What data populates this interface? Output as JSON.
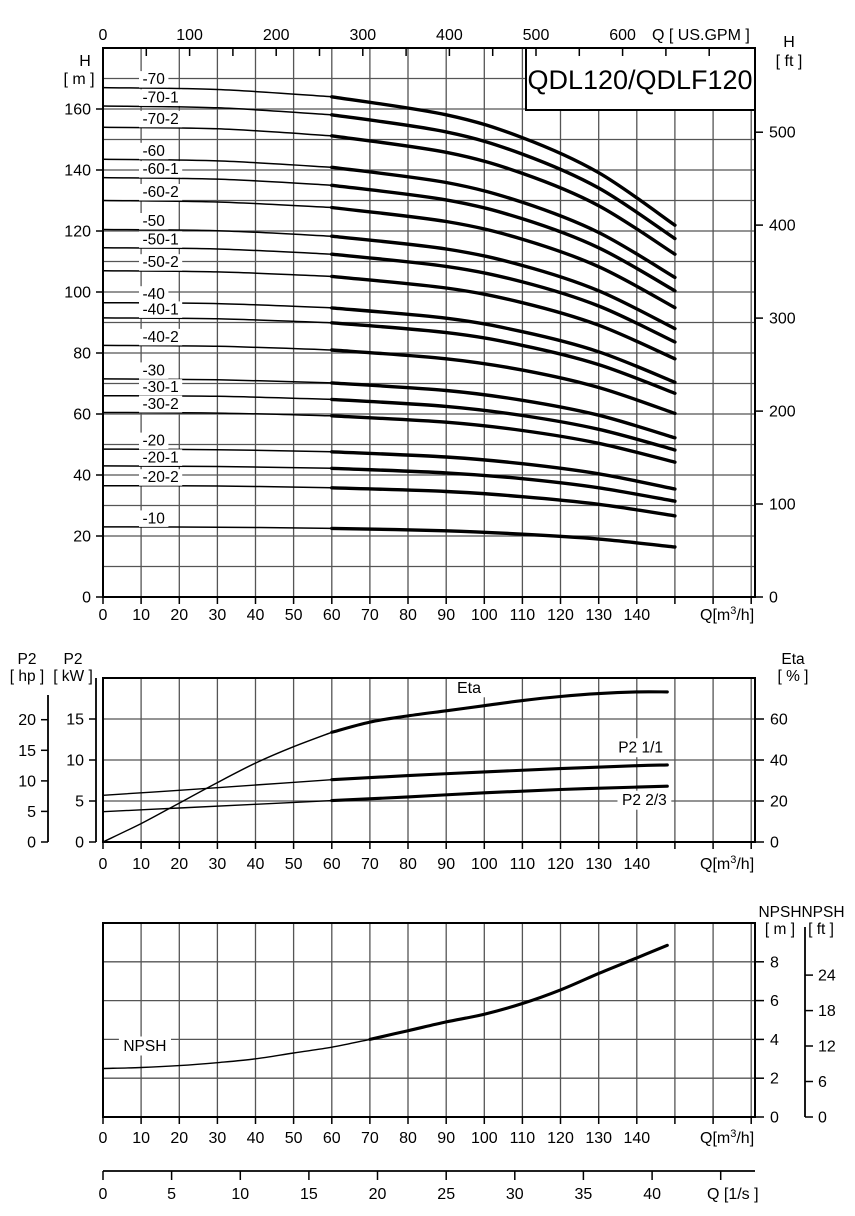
{
  "page": {
    "background": "#ffffff",
    "colors": {
      "ink": "#000000",
      "grid": "#555555",
      "box_fill": "#ffffff"
    }
  },
  "chart_data": [
    {
      "id": "head_capacity",
      "type": "line",
      "title": "QDL120/QDLF120",
      "axes": {
        "x_bottom": {
          "label": "Q[m³/h]",
          "range": [
            0,
            171
          ],
          "ticks": [
            0,
            10,
            20,
            30,
            40,
            50,
            60,
            70,
            80,
            90,
            100,
            110,
            120,
            130,
            140
          ],
          "grid_step": 10,
          "grid_max": 170
        },
        "x_top": {
          "label": "Q [ US.GPM ]",
          "ticks": [
            0,
            100,
            200,
            300,
            400,
            500,
            600
          ],
          "minor_tick_step": 50,
          "minor_tick_max": 700,
          "gpm_to_m3h": 0.22712
        },
        "y_left": {
          "name": "H",
          "unit": "[ m ]",
          "range": [
            0,
            180
          ],
          "ticks": [
            0,
            20,
            40,
            60,
            80,
            100,
            120,
            140,
            160
          ],
          "grid_step": 10
        },
        "y_right": {
          "name": "H",
          "unit": "[ ft ]",
          "ticks": [
            0,
            100,
            200,
            300,
            400,
            500
          ],
          "ft_to_m": 0.3048
        }
      },
      "series": [
        {
          "label": "-70",
          "bold_from": 60,
          "points": [
            [
              0,
              167
            ],
            [
              30,
              166.4
            ],
            [
              60,
              164
            ],
            [
              90,
              158.1
            ],
            [
              110,
              150.6
            ],
            [
              130,
              139.1
            ],
            [
              150,
              121.9
            ]
          ]
        },
        {
          "label": "-70-1",
          "bold_from": 60,
          "points": [
            [
              0,
              161
            ],
            [
              30,
              160.4
            ],
            [
              60,
              158.1
            ],
            [
              90,
              152.5
            ],
            [
              110,
              145.2
            ],
            [
              130,
              134.1
            ],
            [
              150,
              117.5
            ]
          ]
        },
        {
          "label": "-70-2",
          "bold_from": 60,
          "points": [
            [
              0,
              154
            ],
            [
              30,
              153.5
            ],
            [
              60,
              151.2
            ],
            [
              90,
              145.8
            ],
            [
              110,
              138.9
            ],
            [
              130,
              128.3
            ],
            [
              150,
              112.4
            ]
          ]
        },
        {
          "label": "-60",
          "bold_from": 60,
          "points": [
            [
              0,
              143.5
            ],
            [
              30,
              143
            ],
            [
              60,
              140.9
            ],
            [
              90,
              135.9
            ],
            [
              110,
              129.4
            ],
            [
              130,
              119.5
            ],
            [
              150,
              104.8
            ]
          ]
        },
        {
          "label": "-60-1",
          "bold_from": 60,
          "points": [
            [
              0,
              137.5
            ],
            [
              30,
              137
            ],
            [
              60,
              135
            ],
            [
              90,
              130.2
            ],
            [
              110,
              124
            ],
            [
              130,
              114.5
            ],
            [
              150,
              100.4
            ]
          ]
        },
        {
          "label": "-60-2",
          "bold_from": 60,
          "points": [
            [
              0,
              130
            ],
            [
              30,
              129.5
            ],
            [
              60,
              127.7
            ],
            [
              90,
              123.1
            ],
            [
              110,
              117.3
            ],
            [
              130,
              108.3
            ],
            [
              150,
              94.9
            ]
          ]
        },
        {
          "label": "-50",
          "bold_from": 60,
          "points": [
            [
              0,
              120.5
            ],
            [
              30,
              120.1
            ],
            [
              60,
              118.3
            ],
            [
              90,
              114.1
            ],
            [
              110,
              108.7
            ],
            [
              130,
              100.4
            ],
            [
              150,
              88
            ]
          ]
        },
        {
          "label": "-50-1",
          "bold_from": 60,
          "points": [
            [
              0,
              114.5
            ],
            [
              30,
              114.1
            ],
            [
              60,
              112.4
            ],
            [
              90,
              108.4
            ],
            [
              110,
              103.3
            ],
            [
              130,
              95.4
            ],
            [
              150,
              83.6
            ]
          ]
        },
        {
          "label": "-50-2",
          "bold_from": 60,
          "points": [
            [
              0,
              107
            ],
            [
              30,
              106.6
            ],
            [
              60,
              105.1
            ],
            [
              90,
              101.3
            ],
            [
              110,
              96.5
            ],
            [
              130,
              89.1
            ],
            [
              150,
              78.1
            ]
          ]
        },
        {
          "label": "-40",
          "bold_from": 60,
          "points": [
            [
              0,
              96.5
            ],
            [
              30,
              96.2
            ],
            [
              60,
              94.8
            ],
            [
              90,
              91.4
            ],
            [
              110,
              87
            ],
            [
              130,
              80.4
            ],
            [
              150,
              70.4
            ]
          ]
        },
        {
          "label": "-40-1",
          "bold_from": 60,
          "points": [
            [
              0,
              91.5
            ],
            [
              30,
              91.2
            ],
            [
              60,
              89.9
            ],
            [
              90,
              86.7
            ],
            [
              110,
              82.5
            ],
            [
              130,
              76.2
            ],
            [
              150,
              66.8
            ]
          ]
        },
        {
          "label": "-40-2",
          "bold_from": 60,
          "points": [
            [
              0,
              82.5
            ],
            [
              30,
              82.2
            ],
            [
              60,
              81
            ],
            [
              90,
              78.1
            ],
            [
              110,
              74.4
            ],
            [
              130,
              68.7
            ],
            [
              150,
              60.2
            ]
          ]
        },
        {
          "label": "-30",
          "bold_from": 60,
          "points": [
            [
              0,
              71.5
            ],
            [
              30,
              71.2
            ],
            [
              60,
              70.2
            ],
            [
              90,
              67.7
            ],
            [
              110,
              64.5
            ],
            [
              130,
              59.6
            ],
            [
              150,
              52.2
            ]
          ]
        },
        {
          "label": "-30-1",
          "bold_from": 60,
          "points": [
            [
              0,
              66
            ],
            [
              30,
              65.8
            ],
            [
              60,
              64.8
            ],
            [
              90,
              62.5
            ],
            [
              110,
              59.5
            ],
            [
              130,
              55
            ],
            [
              150,
              48.2
            ]
          ]
        },
        {
          "label": "-30-2",
          "bold_from": 60,
          "points": [
            [
              0,
              60.5
            ],
            [
              30,
              60.3
            ],
            [
              60,
              59.4
            ],
            [
              90,
              57.3
            ],
            [
              110,
              54.6
            ],
            [
              130,
              50.4
            ],
            [
              150,
              44.2
            ]
          ]
        },
        {
          "label": "-20",
          "bold_from": 60,
          "points": [
            [
              0,
              48.5
            ],
            [
              30,
              48.3
            ],
            [
              60,
              47.6
            ],
            [
              90,
              45.9
            ],
            [
              110,
              43.7
            ],
            [
              130,
              40.4
            ],
            [
              150,
              35.4
            ]
          ]
        },
        {
          "label": "-20-1",
          "bold_from": 60,
          "points": [
            [
              0,
              43
            ],
            [
              30,
              42.8
            ],
            [
              60,
              42.2
            ],
            [
              90,
              40.7
            ],
            [
              110,
              38.8
            ],
            [
              130,
              35.8
            ],
            [
              150,
              31.4
            ]
          ]
        },
        {
          "label": "-20-2",
          "bold_from": 60,
          "points": [
            [
              0,
              36.5
            ],
            [
              30,
              36.4
            ],
            [
              60,
              35.8
            ],
            [
              90,
              34.6
            ],
            [
              110,
              32.9
            ],
            [
              130,
              30.4
            ],
            [
              150,
              26.6
            ]
          ]
        },
        {
          "label": "-10",
          "bold_from": 60,
          "points": [
            [
              0,
              23
            ],
            [
              30,
              22.9
            ],
            [
              60,
              22.5
            ],
            [
              90,
              21.7
            ],
            [
              110,
              20.6
            ],
            [
              130,
              19
            ],
            [
              150,
              16.4
            ]
          ]
        }
      ]
    },
    {
      "id": "power_efficiency",
      "type": "line",
      "axes": {
        "x_bottom": {
          "label": "Q[m³/h]",
          "range": [
            0,
            171
          ],
          "ticks": [
            0,
            10,
            20,
            30,
            40,
            50,
            60,
            70,
            80,
            90,
            100,
            110,
            120,
            130,
            140
          ],
          "grid_step": 10,
          "grid_max": 170
        },
        "y_hp": {
          "name": "P2",
          "unit": "[ hp ]",
          "ticks": [
            0,
            5,
            10,
            15,
            20
          ],
          "hp_to_kw": 0.7457
        },
        "y_kw": {
          "name": "P2",
          "unit": "[ kW ]",
          "range": [
            0,
            20
          ],
          "ticks": [
            0,
            5,
            10,
            15
          ],
          "grid_step": 5
        },
        "y_eta": {
          "name": "Eta",
          "unit": "[ % ]",
          "range": [
            0,
            80
          ],
          "ticks": [
            0,
            20,
            40,
            60
          ]
        }
      },
      "series": [
        {
          "label": "Eta",
          "axis": "eta",
          "bold_from": 60,
          "points": [
            [
              0,
              0
            ],
            [
              10,
              9
            ],
            [
              20,
              19
            ],
            [
              30,
              29
            ],
            [
              40,
              38.5
            ],
            [
              50,
              46.5
            ],
            [
              60,
              53.5
            ],
            [
              70,
              58.5
            ],
            [
              80,
              61.5
            ],
            [
              90,
              64
            ],
            [
              100,
              66.5
            ],
            [
              110,
              69
            ],
            [
              120,
              71
            ],
            [
              130,
              72.4
            ],
            [
              140,
              73.2
            ],
            [
              148,
              73.2
            ]
          ]
        },
        {
          "label": "P2 1/1",
          "axis": "kw",
          "bold_from": 60,
          "points": [
            [
              0,
              5.7
            ],
            [
              20,
              6.3
            ],
            [
              40,
              6.95
            ],
            [
              60,
              7.6
            ],
            [
              80,
              8.1
            ],
            [
              100,
              8.55
            ],
            [
              120,
              8.95
            ],
            [
              140,
              9.3
            ],
            [
              148,
              9.4
            ]
          ]
        },
        {
          "label": "P2 2/3",
          "axis": "kw",
          "bold_from": 60,
          "points": [
            [
              0,
              3.7
            ],
            [
              20,
              4.15
            ],
            [
              40,
              4.6
            ],
            [
              60,
              5.05
            ],
            [
              80,
              5.5
            ],
            [
              100,
              6
            ],
            [
              120,
              6.4
            ],
            [
              140,
              6.7
            ],
            [
              148,
              6.8
            ]
          ]
        }
      ],
      "annotations": [
        {
          "text": "Eta",
          "q": 96,
          "v": 18.8,
          "axis": "kw"
        },
        {
          "text": "P2 1/1",
          "q": 141,
          "v": 11.5,
          "axis": "kw"
        },
        {
          "text": "P2 2/3",
          "q": 142,
          "v": 5.1,
          "axis": "kw"
        }
      ]
    },
    {
      "id": "npsh",
      "type": "line",
      "axes": {
        "x_bottom": {
          "label": "Q[m³/h]",
          "range": [
            0,
            171
          ],
          "ticks": [
            0,
            10,
            20,
            30,
            40,
            50,
            60,
            70,
            80,
            90,
            100,
            110,
            120,
            130,
            140
          ],
          "grid_step": 10,
          "grid_max": 170
        },
        "x_ls": {
          "label": "Q [1/s ]",
          "ticks": [
            0,
            5,
            10,
            15,
            20,
            25,
            30,
            35,
            40
          ],
          "minor_tick_max": 45,
          "ls_to_m3h": 3.6
        },
        "y_right_m": {
          "name": "NPSH",
          "unit": "[ m ]",
          "range": [
            0,
            10
          ],
          "ticks": [
            0,
            2,
            4,
            6,
            8
          ],
          "grid_step": 2
        },
        "y_right_ft": {
          "name": "NPSH",
          "unit": "[ ft ]",
          "ticks": [
            0,
            6,
            12,
            18,
            24
          ],
          "ft_to_m": 0.3048
        }
      },
      "series": [
        {
          "label": "NPSH",
          "bold_from": 70,
          "points": [
            [
              0,
              2.5
            ],
            [
              10,
              2.55
            ],
            [
              20,
              2.65
            ],
            [
              30,
              2.8
            ],
            [
              40,
              3
            ],
            [
              50,
              3.3
            ],
            [
              60,
              3.6
            ],
            [
              70,
              4
            ],
            [
              80,
              4.45
            ],
            [
              90,
              4.9
            ],
            [
              100,
              5.3
            ],
            [
              110,
              5.85
            ],
            [
              120,
              6.55
            ],
            [
              130,
              7.4
            ],
            [
              140,
              8.2
            ],
            [
              148,
              8.85
            ]
          ]
        }
      ],
      "annotations": [
        {
          "text": "NPSH",
          "q": 11,
          "v": 3.66
        }
      ]
    }
  ]
}
